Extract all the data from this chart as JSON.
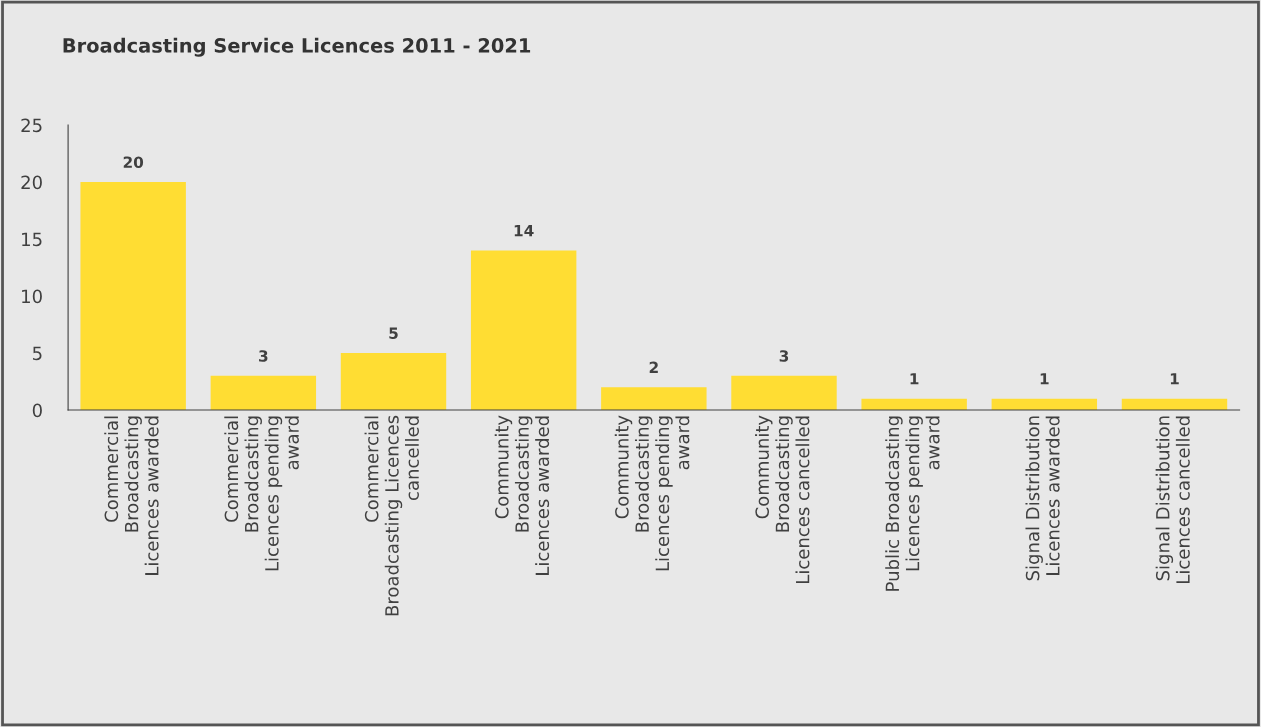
{
  "chart_data": {
    "type": "bar",
    "title": "Broadcasting Service Licences 2011 - 2021",
    "categories": [
      "Commercial\nBroadcasting\nLicences awarded",
      "Commercial\nBroadcasting\nLicences pending\naward",
      "Commercial\nBroadcasting Licences\ncancelled",
      "Community\nBroadcasting\nLicences awarded",
      "Community\nBroadcasting\nLicences pending\naward",
      "Community\nBroadcasting\nLicences cancelled",
      "Public Broadcasting\nLicences pending\naward",
      "Signal Distribution\nLicences awarded",
      "Signal Distribution\nLicences cancelled"
    ],
    "values": [
      20,
      3,
      5,
      14,
      2,
      3,
      1,
      1,
      1
    ],
    "color": "#ffdd33",
    "ylim": [
      0,
      25
    ],
    "yticks": [
      0,
      5,
      10,
      15,
      20,
      25
    ],
    "data_labels": true,
    "grid": false
  }
}
